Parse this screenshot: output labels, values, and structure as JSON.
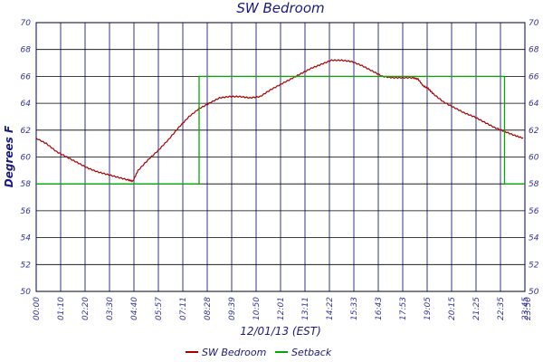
{
  "chart_data": {
    "type": "line",
    "title": "SW Bedroom",
    "xlabel": "12/01/13 (EST)",
    "ylabel": "Degrees F",
    "ylim": [
      50,
      70
    ],
    "yticks": [
      50,
      52,
      54,
      56,
      58,
      60,
      62,
      64,
      66,
      68,
      70
    ],
    "xlim_hours": [
      0,
      24
    ],
    "grid": true,
    "legend": "bottom-center",
    "x_tick_labels": [
      "00:00",
      "01:10",
      "02:20",
      "03:30",
      "04:40",
      "05:57",
      "07:11",
      "08:28",
      "09:39",
      "10:50",
      "12:01",
      "13:11",
      "14:22",
      "15:33",
      "16:43",
      "17:53",
      "19:05",
      "20:15",
      "21:25",
      "22:35",
      "23:45",
      "23:50"
    ],
    "series": [
      {
        "name": "SW Bedroom",
        "color": "#aa0000",
        "points": [
          [
            "00:00",
            61.4
          ],
          [
            "00:30",
            61.0
          ],
          [
            "01:00",
            60.4
          ],
          [
            "01:30",
            60.0
          ],
          [
            "02:00",
            59.6
          ],
          [
            "02:30",
            59.2
          ],
          [
            "03:00",
            58.9
          ],
          [
            "03:30",
            58.7
          ],
          [
            "04:00",
            58.5
          ],
          [
            "04:30",
            58.3
          ],
          [
            "04:45",
            58.2
          ],
          [
            "05:00",
            59.0
          ],
          [
            "05:30",
            59.8
          ],
          [
            "06:00",
            60.5
          ],
          [
            "06:30",
            61.3
          ],
          [
            "07:00",
            62.2
          ],
          [
            "07:30",
            63.0
          ],
          [
            "08:00",
            63.6
          ],
          [
            "08:30",
            64.0
          ],
          [
            "09:00",
            64.4
          ],
          [
            "09:30",
            64.5
          ],
          [
            "10:00",
            64.5
          ],
          [
            "10:30",
            64.4
          ],
          [
            "11:00",
            64.5
          ],
          [
            "11:30",
            65.0
          ],
          [
            "12:00",
            65.4
          ],
          [
            "12:30",
            65.8
          ],
          [
            "13:00",
            66.2
          ],
          [
            "13:30",
            66.6
          ],
          [
            "14:00",
            66.9
          ],
          [
            "14:30",
            67.2
          ],
          [
            "15:00",
            67.2
          ],
          [
            "15:30",
            67.1
          ],
          [
            "16:00",
            66.8
          ],
          [
            "16:30",
            66.4
          ],
          [
            "17:00",
            66.0
          ],
          [
            "17:30",
            65.9
          ],
          [
            "18:00",
            65.9
          ],
          [
            "18:30",
            65.9
          ],
          [
            "18:45",
            65.8
          ],
          [
            "19:00",
            65.3
          ],
          [
            "19:15",
            65.1
          ],
          [
            "19:30",
            64.7
          ],
          [
            "20:00",
            64.1
          ],
          [
            "20:30",
            63.7
          ],
          [
            "21:00",
            63.3
          ],
          [
            "21:30",
            63.0
          ],
          [
            "22:00",
            62.6
          ],
          [
            "22:30",
            62.2
          ],
          [
            "23:00",
            61.9
          ],
          [
            "23:30",
            61.6
          ],
          [
            "23:55",
            61.4
          ]
        ]
      },
      {
        "name": "Setback",
        "color": "#00aa00",
        "points": [
          [
            "00:00",
            58
          ],
          [
            "08:00",
            58
          ],
          [
            "08:00",
            66
          ],
          [
            "23:00",
            66
          ],
          [
            "23:00",
            58
          ],
          [
            "24:00",
            58
          ]
        ]
      }
    ]
  }
}
